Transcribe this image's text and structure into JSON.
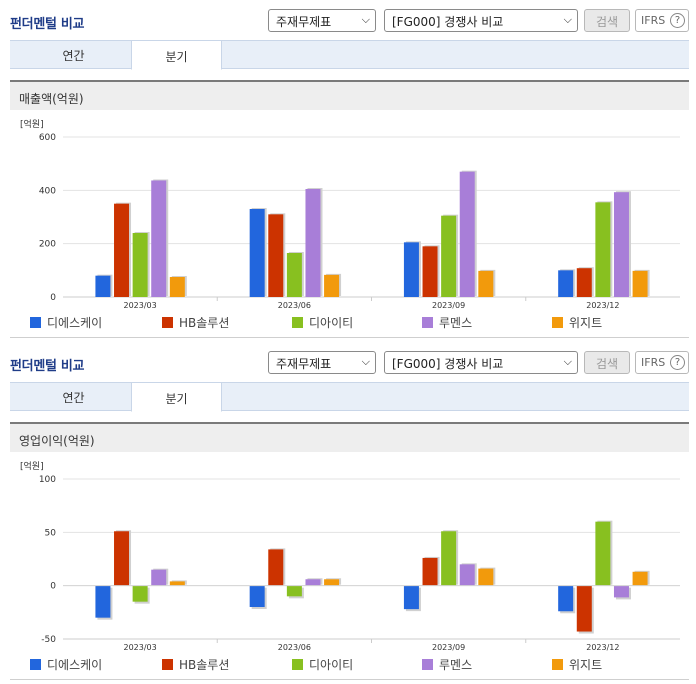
{
  "panels": [
    {
      "title": "펀더멘털 비교",
      "select1": "주재무제표",
      "select2": "[FG000] 경쟁사 비교",
      "search_label": "검색",
      "ifrs_label": "IFRS",
      "help_glyph": "?",
      "tabs": [
        {
          "label": "연간"
        },
        {
          "label": "분기"
        }
      ],
      "active_tab": 1,
      "section_title": "매출액(억원)"
    },
    {
      "title": "펀더멘털 비교",
      "select1": "주재무제표",
      "select2": "[FG000] 경쟁사 비교",
      "search_label": "검색",
      "ifrs_label": "IFRS",
      "help_glyph": "?",
      "tabs": [
        {
          "label": "연간"
        },
        {
          "label": "분기"
        }
      ],
      "active_tab": 1,
      "section_title": "영업이익(억원)"
    }
  ],
  "colors": {
    "series": [
      "#2266dd",
      "#cc3300",
      "#88c020",
      "#a87ed8",
      "#f29a0c"
    ]
  },
  "chart_data": [
    {
      "type": "bar",
      "unit_label": "[억원]",
      "categories": [
        "2023/03",
        "2023/06",
        "2023/09",
        "2023/12"
      ],
      "ylim": [
        0,
        600
      ],
      "yticks": [
        0,
        200,
        400,
        600
      ],
      "grid": true,
      "legend_position": "bottom",
      "series": [
        {
          "name": "디에스케이",
          "values": [
            80,
            330,
            205,
            100
          ]
        },
        {
          "name": "HB솔루션",
          "values": [
            350,
            310,
            190,
            108
          ]
        },
        {
          "name": "디아이티",
          "values": [
            240,
            165,
            305,
            355
          ]
        },
        {
          "name": "루멘스",
          "values": [
            437,
            405,
            470,
            393
          ]
        },
        {
          "name": "위지트",
          "values": [
            75,
            83,
            98,
            98
          ]
        }
      ]
    },
    {
      "type": "bar",
      "unit_label": "[억원]",
      "categories": [
        "2023/03",
        "2023/06",
        "2023/09",
        "2023/12"
      ],
      "ylim": [
        -50,
        100
      ],
      "yticks": [
        -50,
        0,
        50,
        100
      ],
      "grid": true,
      "legend_position": "bottom",
      "series": [
        {
          "name": "디에스케이",
          "values": [
            -30,
            -20,
            -22,
            -24
          ]
        },
        {
          "name": "HB솔루션",
          "values": [
            51,
            34,
            26,
            -43
          ]
        },
        {
          "name": "디아이티",
          "values": [
            -15,
            -10,
            51,
            60
          ]
        },
        {
          "name": "루멘스",
          "values": [
            15,
            6,
            20,
            -11
          ]
        },
        {
          "name": "위지트",
          "values": [
            4,
            6,
            16,
            13
          ]
        }
      ]
    }
  ]
}
